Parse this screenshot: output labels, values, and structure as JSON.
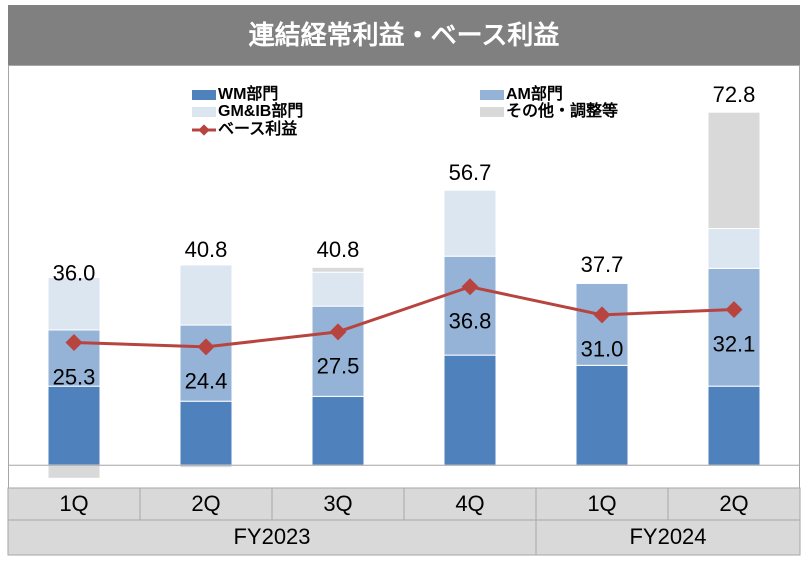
{
  "chart_data": {
    "type": "stacked_bar_line",
    "title": "連結経常利益・ベース利益",
    "categories": [
      "1Q",
      "2Q",
      "3Q",
      "4Q",
      "1Q",
      "2Q"
    ],
    "groups": [
      {
        "label": "FY2023",
        "span": 4
      },
      {
        "label": "FY2024",
        "span": 2
      }
    ],
    "series": [
      {
        "name": "WM部門",
        "color": "#4f81bd",
        "values": [
          16.3,
          13.2,
          14.2,
          22.7,
          20.6,
          16.3
        ]
      },
      {
        "name": "AM部門",
        "color": "#95b3d7",
        "values": [
          11.6,
          15.7,
          18.6,
          20.4,
          16.9,
          24.3
        ]
      },
      {
        "name": "GM&IB部門",
        "color": "#dce6f1",
        "values": [
          10.8,
          12.4,
          7.0,
          13.6,
          0.2,
          8.2
        ]
      },
      {
        "name": "その他・調整等",
        "color": "#d9d9d9",
        "values": [
          -2.7,
          -0.5,
          1.0,
          0,
          0,
          24.0
        ]
      }
    ],
    "totals": [
      36.0,
      40.8,
      40.8,
      56.7,
      37.7,
      72.8
    ],
    "total_labels": [
      "36.0",
      "40.8",
      "40.8",
      "56.7",
      "37.7",
      "72.8"
    ],
    "line": {
      "name": "ベース利益",
      "color": "#b84440",
      "values": [
        25.3,
        24.4,
        27.5,
        36.8,
        31.0,
        32.1
      ],
      "value_labels": [
        "25.3",
        "24.4",
        "27.5",
        "36.8",
        "31.0",
        "32.1"
      ]
    },
    "ylim": [
      -4.7,
      81.5
    ]
  }
}
